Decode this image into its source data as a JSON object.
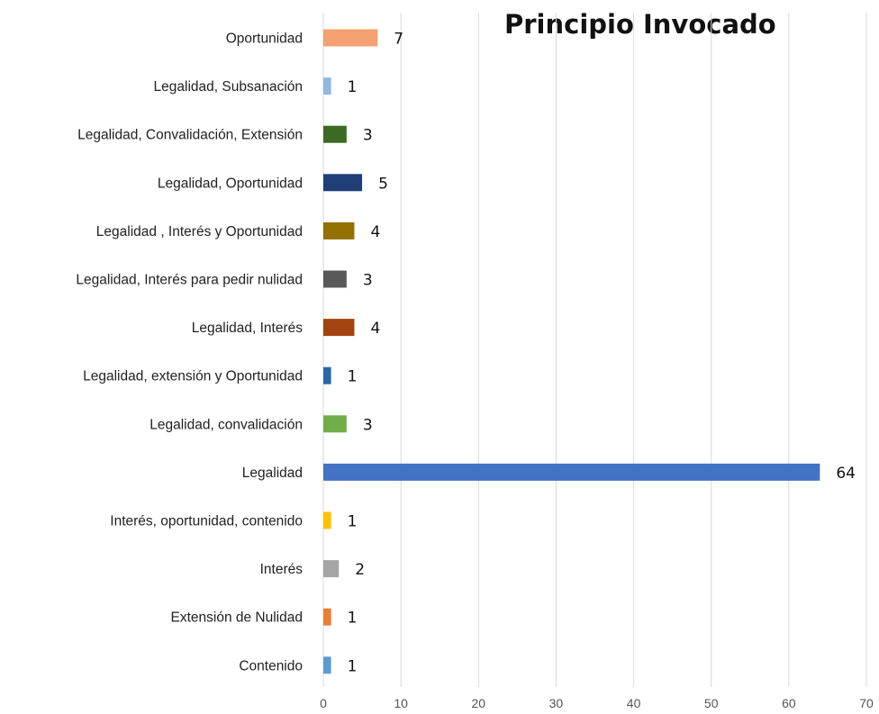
{
  "chart_data": {
    "type": "bar",
    "orientation": "horizontal",
    "title": "Principio Invocado",
    "xlabel": "",
    "ylabel": "",
    "xlim": [
      0,
      70
    ],
    "xticks": [
      0,
      10,
      20,
      30,
      40,
      50,
      60,
      70
    ],
    "grid": "vertical",
    "legend": "none",
    "categories": [
      "Oportunidad",
      "Legalidad, Subsanación",
      "Legalidad, Convalidación, Extensión",
      "Legalidad, Oportunidad",
      "Legalidad , Interés y Oportunidad",
      "Legalidad, Interés para pedir nulidad",
      "Legalidad, Interés",
      "Legalidad, extensión y Oportunidad",
      "Legalidad, convalidación",
      "Legalidad",
      "Interés, oportunidad, contenido",
      "Interés",
      "Extensión de Nulidad",
      "Contenido"
    ],
    "values": [
      7,
      1,
      3,
      5,
      4,
      3,
      4,
      1,
      3,
      64,
      1,
      2,
      1,
      1
    ],
    "colors": [
      "#f4a071",
      "#8fb8e3",
      "#3b6b22",
      "#203f78",
      "#937000",
      "#595959",
      "#a3430f",
      "#2a67a8",
      "#72ad4a",
      "#4472c4",
      "#ffc000",
      "#a5a5a5",
      "#ed7d31",
      "#5b9bd5"
    ]
  }
}
